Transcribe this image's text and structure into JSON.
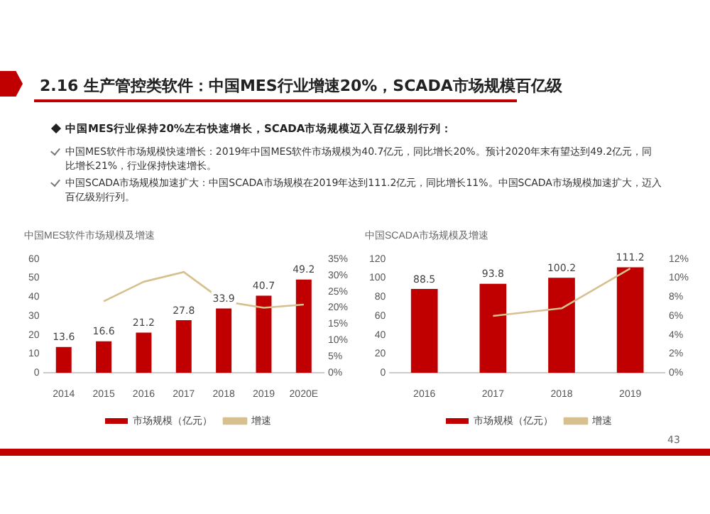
{
  "chart_data": [
    {
      "type": "bar",
      "title": "中国MES软件市场规模及增速",
      "annotations": [
        "2.16 生产管控类软件：中国MES行业增速20%，SCADA市场规模百亿级",
        "中国MES行业保持20%左右快速增长，SCADA市场规模迈入百亿级别行列：",
        "中国MES软件市场规模快速增长：2019年中国MES软件市场规模为40.7亿元，同比增长20%。预计2020年末有望达到49.2亿元，同比增长21%，行业保持快速增长。",
        "中国SCADA市场规模加速扩大：中国SCADA市场规模在2019年达到111.2亿元，同比增长11%。中国SCADA市场规模加速扩大，迈入百亿级别行列。",
        "43"
      ],
      "categories": [
        "2014",
        "2015",
        "2016",
        "2017",
        "2018",
        "2019",
        "2020E"
      ],
      "series": [
        {
          "name": "市场规模（亿元）",
          "color": "#c00000",
          "values": [
            13.6,
            16.6,
            21.2,
            27.8,
            33.9,
            40.7,
            49.2
          ],
          "value_labels": [
            "13.6",
            "16.6",
            "21.2",
            "27.8",
            "33.9",
            "40.7",
            "49.2"
          ]
        },
        {
          "name": "增速",
          "type": "line",
          "axis": "y2",
          "color": "#d6c08e",
          "marker": "none",
          "values": [
            null,
            22,
            28,
            31,
            22,
            20,
            21
          ]
        }
      ],
      "ylim": [
        0,
        60
      ],
      "yticks": [
        0,
        10,
        20,
        30,
        40,
        50,
        60
      ],
      "y2lim": [
        0,
        35
      ],
      "y2ticks": [
        {
          "value": 0,
          "label": "0%"
        },
        {
          "value": 5,
          "label": "5%"
        },
        {
          "value": 10,
          "label": "10%"
        },
        {
          "value": 15,
          "label": "15%"
        },
        {
          "value": 20,
          "label": "20%"
        },
        {
          "value": 25,
          "label": "25%"
        },
        {
          "value": 30,
          "label": "30%"
        },
        {
          "value": 35,
          "label": "35%"
        }
      ],
      "legend": "bottom",
      "grid": false
    },
    {
      "type": "bar",
      "title": "中国SCADA市场规模及增速",
      "categories": [
        "2016",
        "2017",
        "2018",
        "2019"
      ],
      "series": [
        {
          "name": "市场规模（亿元）",
          "color": "#c00000",
          "values": [
            88.5,
            93.8,
            100.2,
            111.2
          ],
          "value_labels": [
            "88.5",
            "93.8",
            "100.2",
            "111.2"
          ]
        },
        {
          "name": "增速",
          "type": "line",
          "axis": "y2",
          "color": "#d6c08e",
          "marker": "none",
          "values": [
            null,
            6,
            6.8,
            11
          ]
        }
      ],
      "ylim": [
        0,
        120
      ],
      "yticks": [
        0,
        20,
        40,
        60,
        80,
        100,
        120
      ],
      "y2lim": [
        0,
        12
      ],
      "y2ticks": [
        {
          "value": 0,
          "label": "0%"
        },
        {
          "value": 2,
          "label": "2%"
        },
        {
          "value": 4,
          "label": "4%"
        },
        {
          "value": 6,
          "label": "6%"
        },
        {
          "value": 8,
          "label": "8%"
        },
        {
          "value": 10,
          "label": "10%"
        },
        {
          "value": 12,
          "label": "12%"
        }
      ],
      "legend": "bottom",
      "grid": false
    }
  ]
}
